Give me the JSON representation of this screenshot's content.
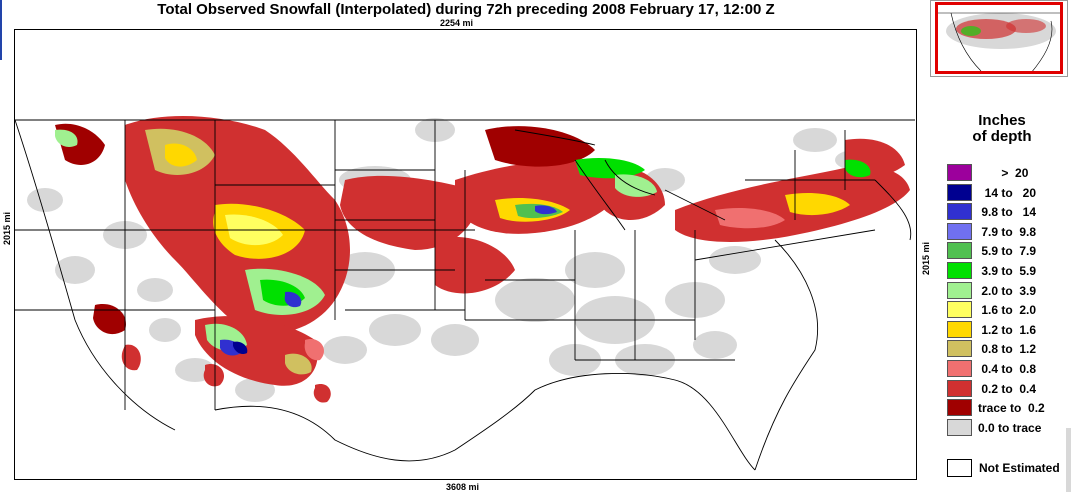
{
  "title": "Total Observed Snowfall (Interpolated) during 72h preceding 2008 February 17, 12:00 Z",
  "scales": {
    "top": "2254 mi",
    "bottom": "3608 mi",
    "left": "2015 mi",
    "right": "2015 mi"
  },
  "legend": {
    "title_line1": "Inches",
    "title_line2": "of depth",
    "items": [
      {
        "label": "       >  20",
        "color": "#9c009c"
      },
      {
        "label": "  14 to   20",
        "color": "#000090"
      },
      {
        "label": " 9.8 to   14",
        "color": "#3030d0"
      },
      {
        "label": " 7.9 to  9.8",
        "color": "#7070f0"
      },
      {
        "label": " 5.9 to  7.9",
        "color": "#50c050"
      },
      {
        "label": " 3.9 to  5.9",
        "color": "#00e000"
      },
      {
        "label": " 2.0 to  3.9",
        "color": "#a0f090"
      },
      {
        "label": " 1.6 to  2.0",
        "color": "#ffff60"
      },
      {
        "label": " 1.2 to  1.6",
        "color": "#ffd800"
      },
      {
        "label": " 0.8 to  1.2",
        "color": "#d0c060"
      },
      {
        "label": " 0.4 to  0.8",
        "color": "#f07070"
      },
      {
        "label": " 0.2 to  0.4",
        "color": "#d03030"
      },
      {
        "label": "trace to  0.2",
        "color": "#a00000"
      },
      {
        "label": "0.0 to trace",
        "color": "#d8d8d8"
      }
    ],
    "not_estimated": "Not Estimated"
  },
  "inset": {
    "highlight_color": "#e00000"
  }
}
